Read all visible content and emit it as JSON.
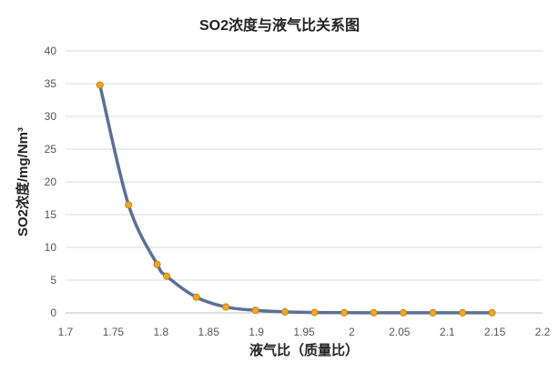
{
  "chart_data": {
    "type": "line",
    "title": "SO2浓度与液气比关系图",
    "xlabel": "液气比（质量比）",
    "ylabel": "SO2浓度/mg/Nm³",
    "xlim": [
      1.7,
      2.2
    ],
    "ylim": [
      0,
      40
    ],
    "x_ticks": [
      "1.7",
      "1.75",
      "1.8",
      "1.85",
      "1.9",
      "1.95",
      "2",
      "2.05",
      "2.1",
      "2.15",
      "2.2"
    ],
    "y_ticks": [
      "0",
      "5",
      "10",
      "15",
      "20",
      "25",
      "30",
      "35",
      "40"
    ],
    "grid": "horizontal",
    "legend": "none",
    "series": [
      {
        "line_color": "#5a7096",
        "marker_color": "#f5a623",
        "x": [
          1.736,
          1.766,
          1.796,
          1.806,
          1.837,
          1.868,
          1.899,
          1.93,
          1.961,
          1.992,
          2.023,
          2.054,
          2.085,
          2.116,
          2.147
        ],
        "y": [
          34.8,
          16.5,
          7.4,
          5.6,
          2.4,
          0.9,
          0.4,
          0.15,
          0.06,
          0.03,
          0.02,
          0.01,
          0.01,
          0.01,
          0.01
        ]
      }
    ]
  }
}
